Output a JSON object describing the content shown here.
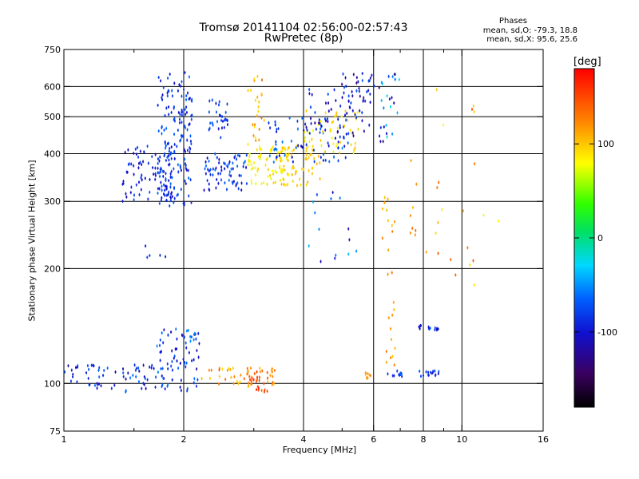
{
  "chart_data": {
    "type": "scatter",
    "title": "Tromsø 20141104 02:56:00-02:57:43",
    "subtitle": "RwPretec (8p)",
    "xlabel": "Frequency [MHz]",
    "ylabel": "Stationary phase Virtual Height [km]",
    "x_scale": "log",
    "y_scale": "log",
    "xlim": [
      1,
      16
    ],
    "ylim": [
      75,
      750
    ],
    "x_ticks": [
      1,
      2,
      4,
      6,
      8,
      10,
      16
    ],
    "x_tick_labels": [
      "1",
      "2",
      "4",
      "6",
      "8",
      "10",
      "16"
    ],
    "x_minor_ticks": [
      1.5,
      3,
      5,
      7,
      9
    ],
    "x_gridlines": [
      2,
      4,
      6,
      8,
      10
    ],
    "y_ticks": [
      75,
      100,
      200,
      300,
      400,
      500,
      600,
      750
    ],
    "y_tick_labels": [
      "75",
      "100",
      "200",
      "300",
      "400",
      "500",
      "600",
      "750"
    ],
    "y_gridlines": [
      100,
      200,
      300,
      400,
      500,
      600
    ],
    "stats_title": "Phases",
    "stats_lines": [
      "mean, sd,O: -79.3, 18.8",
      "mean, sd,X:  95.6, 25.6"
    ],
    "colorbar": {
      "label": "[deg]",
      "range": [
        -180,
        180
      ],
      "tick_values": [
        100,
        0,
        -100
      ],
      "tick_labels": [
        "100",
        "0",
        "-100"
      ]
    },
    "clusters": [
      {
        "f": [
          1.72,
          2.1
        ],
        "h": [
          290,
          655
        ],
        "phase": -95,
        "spread": 20,
        "n": 160
      },
      {
        "f": [
          1.4,
          1.9
        ],
        "h": [
          300,
          420
        ],
        "phase": -105,
        "spread": 20,
        "n": 90
      },
      {
        "f": [
          2.25,
          2.9
        ],
        "h": [
          320,
          400
        ],
        "phase": -95,
        "spread": 25,
        "n": 70
      },
      {
        "f": [
          2.3,
          2.6
        ],
        "h": [
          440,
          560
        ],
        "phase": -95,
        "spread": 20,
        "n": 30
      },
      {
        "f": [
          2.9,
          3.7
        ],
        "h": [
          330,
          420
        ],
        "phase": 85,
        "spread": 15,
        "n": 70
      },
      {
        "f": [
          3.4,
          4.4
        ],
        "h": [
          330,
          420
        ],
        "phase": 100,
        "spread": 10,
        "n": 60
      },
      {
        "f": [
          2.9,
          3.2
        ],
        "h": [
          420,
          650
        ],
        "phase": 110,
        "spread": 30,
        "n": 25
      },
      {
        "f": [
          3.2,
          5.2
        ],
        "h": [
          380,
          500
        ],
        "phase": -90,
        "spread": 25,
        "n": 70
      },
      {
        "f": [
          4.0,
          5.6
        ],
        "h": [
          400,
          520
        ],
        "phase": 90,
        "spread": 20,
        "n": 50
      },
      {
        "f": [
          4.0,
          5.9
        ],
        "h": [
          440,
          620
        ],
        "phase": -110,
        "spread": 25,
        "n": 55
      },
      {
        "f": [
          5.0,
          6.2
        ],
        "h": [
          540,
          650
        ],
        "phase": -110,
        "spread": 30,
        "n": 25
      },
      {
        "f": [
          6.2,
          7.0
        ],
        "h": [
          430,
          650
        ],
        "phase": -90,
        "spread": 60,
        "n": 25
      },
      {
        "f": [
          6.3,
          6.8
        ],
        "h": [
          110,
          320
        ],
        "phase": 120,
        "spread": 20,
        "n": 25
      },
      {
        "f": [
          7.4,
          7.7
        ],
        "h": [
          240,
          390
        ],
        "phase": 120,
        "spread": 20,
        "n": 8
      },
      {
        "f": [
          1.0,
          1.8
        ],
        "h": [
          95,
          112
        ],
        "phase": -100,
        "spread": 25,
        "n": 70
      },
      {
        "f": [
          1.7,
          2.2
        ],
        "h": [
          95,
          140
        ],
        "phase": -95,
        "spread": 30,
        "n": 70
      },
      {
        "f": [
          2.2,
          3.4
        ],
        "h": [
          98,
          110
        ],
        "phase": 120,
        "spread": 25,
        "n": 45
      },
      {
        "f": [
          2.9,
          3.3
        ],
        "h": [
          95,
          108
        ],
        "phase": 150,
        "spread": 15,
        "n": 25
      },
      {
        "f": [
          5.7,
          5.9
        ],
        "h": [
          103,
          107
        ],
        "phase": 120,
        "spread": 10,
        "n": 8
      },
      {
        "f": [
          6.5,
          7.2
        ],
        "h": [
          104,
          108
        ],
        "phase": -95,
        "spread": 15,
        "n": 12
      },
      {
        "f": [
          7.8,
          8.8
        ],
        "h": [
          104,
          108
        ],
        "phase": -95,
        "spread": 15,
        "n": 16
      },
      {
        "f": [
          7.8,
          8.8
        ],
        "h": [
          138,
          142
        ],
        "phase": -100,
        "spread": 15,
        "n": 14
      },
      {
        "f": [
          1.6,
          1.8
        ],
        "h": [
          210,
          235
        ],
        "phase": -100,
        "spread": 10,
        "n": 5
      },
      {
        "f": [
          3.9,
          5.6
        ],
        "h": [
          200,
          320
        ],
        "phase": -90,
        "spread": 40,
        "n": 15
      },
      {
        "f": [
          8,
          13
        ],
        "h": [
          180,
          620
        ],
        "phase": 110,
        "spread": 40,
        "n": 22
      }
    ]
  }
}
